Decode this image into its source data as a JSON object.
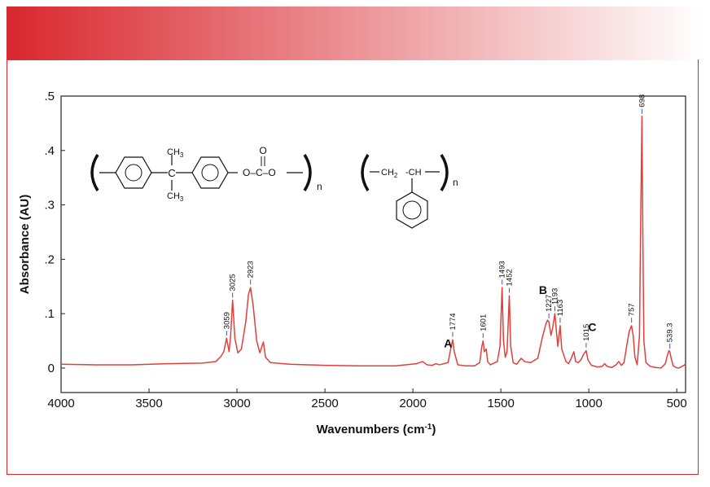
{
  "colors": {
    "banner_start": "#d9272e",
    "banner_end": "#ffffff",
    "frame": "#d9272e",
    "spectrum": "#e0403a",
    "leader": "#3b57c8"
  },
  "chart_data": {
    "type": "line",
    "xlabel": "Wavenumbers (cm",
    "xlabel_sup": "-1",
    "xlabel_close": ")",
    "ylabel": "Absorbance (AU)",
    "xlim": [
      4000,
      450
    ],
    "x_reversed": true,
    "ylim": [
      -0.045,
      0.5
    ],
    "x_ticks": [
      4000,
      3500,
      3000,
      2500,
      2000,
      1500,
      1000,
      500
    ],
    "y_ticks": [
      {
        "value": 0,
        "label": "0"
      },
      {
        "value": 0.1,
        "label": ".1"
      },
      {
        "value": 0.2,
        "label": ".2"
      },
      {
        "value": 0.3,
        "label": ".3"
      },
      {
        "value": 0.4,
        "label": ".4"
      },
      {
        "value": 0.5,
        "label": ".5"
      }
    ],
    "grid": false,
    "series": [
      {
        "points": [
          [
            4000,
            0.007
          ],
          [
            3800,
            0.006
          ],
          [
            3600,
            0.006
          ],
          [
            3400,
            0.008
          ],
          [
            3200,
            0.009
          ],
          [
            3120,
            0.012
          ],
          [
            3090,
            0.022
          ],
          [
            3075,
            0.03
          ],
          [
            3059,
            0.055
          ],
          [
            3045,
            0.03
          ],
          [
            3036,
            0.06
          ],
          [
            3025,
            0.125
          ],
          [
            3012,
            0.055
          ],
          [
            2995,
            0.028
          ],
          [
            2975,
            0.035
          ],
          [
            2950,
            0.085
          ],
          [
            2935,
            0.135
          ],
          [
            2923,
            0.148
          ],
          [
            2908,
            0.115
          ],
          [
            2888,
            0.05
          ],
          [
            2870,
            0.028
          ],
          [
            2850,
            0.048
          ],
          [
            2838,
            0.02
          ],
          [
            2810,
            0.01
          ],
          [
            2700,
            0.007
          ],
          [
            2500,
            0.005
          ],
          [
            2300,
            0.004
          ],
          [
            2100,
            0.004
          ],
          [
            1980,
            0.008
          ],
          [
            1945,
            0.012
          ],
          [
            1920,
            0.006
          ],
          [
            1890,
            0.005
          ],
          [
            1870,
            0.008
          ],
          [
            1850,
            0.006
          ],
          [
            1800,
            0.01
          ],
          [
            1785,
            0.035
          ],
          [
            1774,
            0.052
          ],
          [
            1765,
            0.03
          ],
          [
            1745,
            0.006
          ],
          [
            1700,
            0.004
          ],
          [
            1650,
            0.004
          ],
          [
            1620,
            0.01
          ],
          [
            1608,
            0.04
          ],
          [
            1601,
            0.05
          ],
          [
            1594,
            0.03
          ],
          [
            1583,
            0.035
          ],
          [
            1575,
            0.012
          ],
          [
            1560,
            0.006
          ],
          [
            1520,
            0.012
          ],
          [
            1505,
            0.04
          ],
          [
            1493,
            0.148
          ],
          [
            1485,
            0.05
          ],
          [
            1475,
            0.02
          ],
          [
            1465,
            0.03
          ],
          [
            1452,
            0.133
          ],
          [
            1444,
            0.04
          ],
          [
            1430,
            0.01
          ],
          [
            1410,
            0.007
          ],
          [
            1385,
            0.018
          ],
          [
            1365,
            0.012
          ],
          [
            1330,
            0.01
          ],
          [
            1290,
            0.018
          ],
          [
            1265,
            0.055
          ],
          [
            1245,
            0.08
          ],
          [
            1235,
            0.088
          ],
          [
            1227,
            0.085
          ],
          [
            1215,
            0.06
          ],
          [
            1205,
            0.075
          ],
          [
            1193,
            0.1
          ],
          [
            1185,
            0.07
          ],
          [
            1176,
            0.04
          ],
          [
            1163,
            0.078
          ],
          [
            1154,
            0.035
          ],
          [
            1130,
            0.012
          ],
          [
            1115,
            0.008
          ],
          [
            1100,
            0.018
          ],
          [
            1085,
            0.03
          ],
          [
            1075,
            0.012
          ],
          [
            1060,
            0.01
          ],
          [
            1045,
            0.015
          ],
          [
            1030,
            0.025
          ],
          [
            1015,
            0.032
          ],
          [
            1005,
            0.015
          ],
          [
            985,
            0.005
          ],
          [
            950,
            0.002
          ],
          [
            925,
            0.003
          ],
          [
            910,
            0.008
          ],
          [
            895,
            0.003
          ],
          [
            870,
            0.001
          ],
          [
            845,
            0.006
          ],
          [
            830,
            0.012
          ],
          [
            815,
            0.005
          ],
          [
            800,
            0.01
          ],
          [
            785,
            0.04
          ],
          [
            770,
            0.068
          ],
          [
            757,
            0.078
          ],
          [
            748,
            0.06
          ],
          [
            738,
            0.02
          ],
          [
            725,
            0.006
          ],
          [
            712,
            0.06
          ],
          [
            704,
            0.3
          ],
          [
            698,
            0.463
          ],
          [
            693,
            0.25
          ],
          [
            687,
            0.05
          ],
          [
            675,
            0.01
          ],
          [
            650,
            0.003
          ],
          [
            620,
            0.001
          ],
          [
            590,
            0.0
          ],
          [
            565,
            0.008
          ],
          [
            552,
            0.025
          ],
          [
            545,
            0.032
          ],
          [
            539.3,
            0.03
          ],
          [
            532,
            0.018
          ],
          [
            520,
            0.004
          ],
          [
            505,
            0.001
          ],
          [
            490,
            0.0
          ],
          [
            470,
            0.003
          ],
          [
            455,
            0.006
          ],
          [
            450,
            0.008
          ]
        ]
      }
    ],
    "peak_annotations": [
      {
        "x": 3059,
        "y": 0.058,
        "label": "3059"
      },
      {
        "x": 3025,
        "y": 0.128,
        "label": "3025"
      },
      {
        "x": 2923,
        "y": 0.152,
        "label": "2923"
      },
      {
        "x": 1774,
        "y": 0.056,
        "label": "1774"
      },
      {
        "x": 1601,
        "y": 0.054,
        "label": "1601"
      },
      {
        "x": 1493,
        "y": 0.152,
        "label": "1493"
      },
      {
        "x": 1452,
        "y": 0.137,
        "label": "1452"
      },
      {
        "x": 1227,
        "y": 0.09,
        "label": "1227"
      },
      {
        "x": 1193,
        "y": 0.103,
        "label": "1193"
      },
      {
        "x": 1163,
        "y": 0.082,
        "label": "1163"
      },
      {
        "x": 1015,
        "y": 0.036,
        "label": "1015"
      },
      {
        "x": 757,
        "y": 0.082,
        "label": "757"
      },
      {
        "x": 698,
        "y": 0.466,
        "label": "698"
      },
      {
        "x": 539.3,
        "y": 0.034,
        "label": "539.3"
      }
    ],
    "letter_annotations": [
      {
        "label": "A",
        "x": 1800,
        "y": 0.038
      },
      {
        "label": "B",
        "x": 1260,
        "y": 0.136
      },
      {
        "label": "C",
        "x": 980,
        "y": 0.068
      }
    ]
  },
  "structures": {
    "polycarbonate": {
      "methyl_top": "CH",
      "methyl_top_sub": "3",
      "methyl_bottom": "CH",
      "methyl_bottom_sub": "3",
      "quaternary_c": "C",
      "carbonyl_o": "O",
      "carbonate_chain": "O–C–O",
      "repeat": "n"
    },
    "polystyrene": {
      "ch2": "CH",
      "ch2_sub": "2",
      "ch": "-CH",
      "repeat": "n"
    }
  }
}
